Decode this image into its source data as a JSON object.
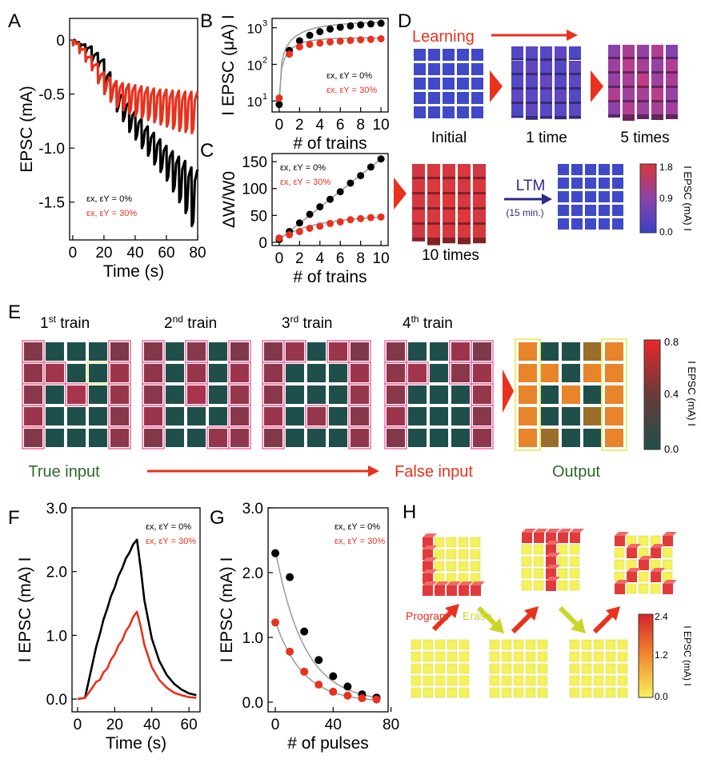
{
  "panels": {
    "A": "A",
    "B": "B",
    "C": "C",
    "D": "D",
    "E": "E",
    "F": "F",
    "G": "G",
    "H": "H"
  },
  "legend": {
    "black": "εx, εY = 0%",
    "red": "εx, εY = 30%"
  },
  "colors": {
    "black": "#000000",
    "red": "#e8321e",
    "fit": "#9a9a9a"
  },
  "chart_data": [
    {
      "id": "A",
      "type": "line",
      "xlabel": "Time (s)",
      "ylabel": "EPSC (mA)",
      "xlim": [
        -2,
        80
      ],
      "ylim": [
        -1.85,
        0.2
      ],
      "xticks": [
        "0",
        "20",
        "40",
        "60",
        "80"
      ],
      "yticks": [
        "0",
        "-0.5",
        "-1.0",
        "-1.5"
      ],
      "xtick_values": [
        0,
        20,
        40,
        60,
        80
      ],
      "ytick_values": [
        0,
        -0.5,
        -1.0,
        -1.5
      ],
      "series": [
        {
          "name": "εx, εY = 0%",
          "color": "#000000",
          "pulse_starts": [
            0,
            4,
            8,
            12,
            16,
            20,
            24,
            28,
            32,
            36,
            40,
            44,
            48,
            52,
            56,
            60,
            64,
            68,
            72,
            76
          ],
          "peaks": [
            -0.04,
            -0.08,
            -0.12,
            -0.2,
            -0.25,
            -0.45,
            -0.55,
            -0.66,
            -0.75,
            -0.85,
            -0.92,
            -1.0,
            -1.07,
            -1.15,
            -1.22,
            -1.3,
            -1.4,
            -1.5,
            -1.6,
            -1.72
          ],
          "baselines": [
            -0.02,
            -0.04,
            -0.06,
            -0.12,
            -0.18,
            -0.3,
            -0.4,
            -0.5,
            -0.58,
            -0.66,
            -0.73,
            -0.8,
            -0.86,
            -0.92,
            -0.98,
            -1.03,
            -1.08,
            -1.12,
            -1.18,
            -1.2
          ]
        },
        {
          "name": "εx, εY = 30%",
          "color": "#e8321e",
          "pulse_starts": [
            0,
            4,
            8,
            12,
            16,
            20,
            24,
            28,
            32,
            36,
            40,
            44,
            48,
            52,
            56,
            60,
            64,
            68,
            72,
            76
          ],
          "peaks": [
            -0.05,
            -0.12,
            -0.2,
            -0.28,
            -0.4,
            -0.5,
            -0.57,
            -0.62,
            -0.65,
            -0.68,
            -0.7,
            -0.72,
            -0.74,
            -0.76,
            -0.78,
            -0.8,
            -0.82,
            -0.84,
            -0.85,
            -0.86
          ],
          "baselines": [
            -0.03,
            -0.08,
            -0.15,
            -0.22,
            -0.3,
            -0.35,
            -0.38,
            -0.4,
            -0.41,
            -0.42,
            -0.43,
            -0.44,
            -0.45,
            -0.46,
            -0.46,
            -0.47,
            -0.47,
            -0.48,
            -0.48,
            -0.48
          ]
        }
      ]
    },
    {
      "id": "B",
      "type": "scatter",
      "scale": "log",
      "xlabel": "# of trains",
      "ylabel": "I EPSC (μA) I",
      "xlim": [
        -0.7,
        10.7
      ],
      "ylim": [
        5,
        1800
      ],
      "xticks": [
        "0",
        "2",
        "4",
        "6",
        "8",
        "10"
      ],
      "xtick_values": [
        0,
        2,
        4,
        6,
        8,
        10
      ],
      "yticks": [
        {
          "base": "10",
          "exp": "1",
          "value": 10
        },
        {
          "base": "10",
          "exp": "2",
          "value": 100
        },
        {
          "base": "10",
          "exp": "3",
          "value": 1000
        }
      ],
      "series": [
        {
          "name": "εx, εY = 0%",
          "color": "#000000",
          "x": [
            0,
            1,
            2,
            3,
            4,
            5,
            6,
            7,
            8,
            9,
            10
          ],
          "y": [
            8,
            240,
            440,
            620,
            780,
            920,
            1030,
            1120,
            1200,
            1270,
            1320
          ]
        },
        {
          "name": "εx, εY = 30%",
          "color": "#e8321e",
          "x": [
            0,
            1,
            2,
            3,
            4,
            5,
            6,
            7,
            8,
            9,
            10
          ],
          "y": [
            12,
            190,
            300,
            350,
            380,
            410,
            430,
            450,
            470,
            480,
            500
          ]
        }
      ]
    },
    {
      "id": "C",
      "type": "scatter",
      "xlabel": "# of trains",
      "ylabel": "ΔW/W0",
      "xlim": [
        -0.7,
        10.7
      ],
      "ylim": [
        -6,
        165
      ],
      "xticks": [
        "0",
        "2",
        "4",
        "6",
        "8",
        "10"
      ],
      "xtick_values": [
        0,
        2,
        4,
        6,
        8,
        10
      ],
      "yticks": [
        "0",
        "50",
        "100",
        "150"
      ],
      "ytick_values": [
        0,
        50,
        100,
        150
      ],
      "series": [
        {
          "name": "εx, εY = 0%",
          "color": "#000000",
          "x": [
            0,
            1,
            2,
            3,
            4,
            5,
            6,
            7,
            8,
            9,
            10
          ],
          "y": [
            5,
            20,
            36,
            52,
            66,
            80,
            94,
            110,
            124,
            140,
            155
          ]
        },
        {
          "name": "εx, εY = 30%",
          "color": "#e8321e",
          "x": [
            0,
            1,
            2,
            3,
            4,
            5,
            6,
            7,
            8,
            9,
            10
          ],
          "y": [
            8,
            14,
            20,
            26,
            30,
            35,
            38,
            42,
            44,
            46,
            47
          ]
        }
      ]
    },
    {
      "id": "F",
      "type": "line",
      "xlabel": "Time (s)",
      "ylabel": "I EPSC (mA) I",
      "xlim": [
        -3,
        66
      ],
      "ylim": [
        -0.2,
        3.0
      ],
      "xticks": [
        "0",
        "20",
        "40",
        "60"
      ],
      "xtick_values": [
        0,
        20,
        40,
        60
      ],
      "yticks": [
        "0.0",
        "1.0",
        "2.0",
        "3.0"
      ],
      "ytick_values": [
        0,
        1,
        2,
        3
      ],
      "series": [
        {
          "name": "εx, εY = 0%",
          "color": "#000000",
          "x": [
            0,
            4,
            8,
            12,
            16,
            20,
            24,
            28,
            32,
            36,
            40,
            44,
            48,
            52,
            56,
            60,
            64
          ],
          "y": [
            0,
            0.02,
            0.55,
            1.02,
            1.42,
            1.75,
            2.05,
            2.3,
            2.5,
            1.55,
            0.95,
            0.6,
            0.38,
            0.24,
            0.15,
            0.09,
            0.06
          ]
        },
        {
          "name": "εx, εY = 30%",
          "color": "#e8321e",
          "x": [
            0,
            4,
            8,
            12,
            16,
            20,
            24,
            28,
            32,
            36,
            40,
            44,
            48,
            52,
            56,
            60,
            64
          ],
          "y": [
            0,
            0.02,
            0.18,
            0.3,
            0.48,
            0.7,
            0.92,
            1.15,
            1.37,
            0.85,
            0.5,
            0.3,
            0.18,
            0.1,
            0.06,
            0.03,
            0.02
          ]
        }
      ]
    },
    {
      "id": "G",
      "type": "scatter",
      "xlabel": "# of pulses",
      "ylabel": "I EPSC (mA) I",
      "xlim": [
        -5,
        78
      ],
      "ylim": [
        -0.15,
        3.0
      ],
      "xticks": [
        "0",
        "40",
        "80"
      ],
      "xtick_values": [
        0,
        40,
        80
      ],
      "yticks": [
        "0.0",
        "1.0",
        "2.0",
        "3.0"
      ],
      "ytick_values": [
        0,
        1,
        2,
        3
      ],
      "series": [
        {
          "name": "εx, εY = 0%",
          "color": "#000000",
          "x": [
            0,
            10,
            20,
            30,
            40,
            50,
            60,
            70
          ],
          "y": [
            2.3,
            1.93,
            1.09,
            0.65,
            0.4,
            0.24,
            0.12,
            0.07
          ]
        },
        {
          "name": "εx, εY = 30%",
          "color": "#e8321e",
          "x": [
            0,
            10,
            20,
            30,
            40,
            50,
            60,
            70
          ],
          "y": [
            1.23,
            0.78,
            0.47,
            0.27,
            0.16,
            0.1,
            0.06,
            0.04
          ]
        }
      ]
    }
  ],
  "panelD": {
    "learning": "Learning",
    "ltm": "LTM",
    "ltm_sub": "(15 min.)",
    "captions": [
      "Initial",
      "1 time",
      "5 times",
      "10 times"
    ],
    "colorbar": {
      "label": "I EPSC (mA) I",
      "ticks": [
        "1.8",
        "0.9",
        "0.0"
      ]
    }
  },
  "panelE": {
    "trains": [
      {
        "n": "1",
        "sup": "st",
        "rest": " train"
      },
      {
        "n": "2",
        "sup": "nd",
        "rest": " train"
      },
      {
        "n": "3",
        "sup": "rd",
        "rest": " train"
      },
      {
        "n": "4",
        "sup": "th",
        "rest": " train"
      }
    ],
    "true_input": "True input",
    "false_input": "False input",
    "output": "Output",
    "colorbar": {
      "label": "I EPSC (mA) I",
      "ticks": [
        "0.8",
        "0.4",
        "0.0"
      ]
    }
  },
  "panelH": {
    "program": "Program",
    "erase": "Erase",
    "colorbar": {
      "label": "I EPSC (mA) I",
      "ticks": [
        "2.4",
        "1.2",
        "0.0"
      ]
    }
  }
}
